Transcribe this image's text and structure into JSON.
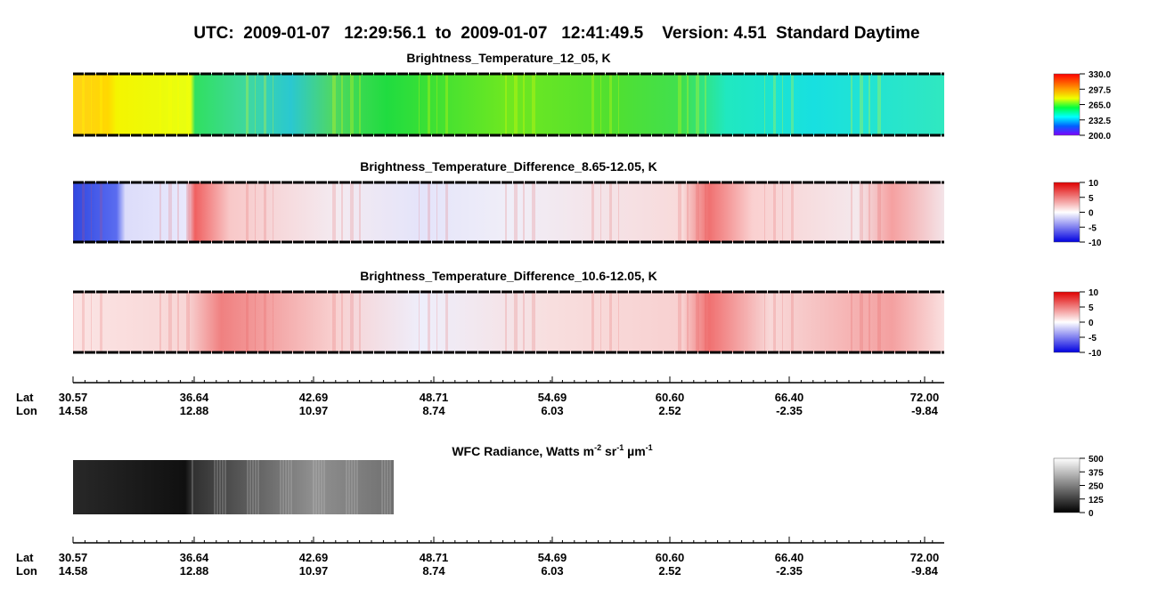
{
  "header": {
    "title": "UTC:  2009-01-07   12:29:56.1  to  2009-01-07   12:41:49.5    Version: 4.51  Standard Daytime"
  },
  "panels": [
    {
      "title": "Brightness_Temperature_12_05, K",
      "colorbar": [
        "330.0",
        "297.5",
        "265.0",
        "232.5",
        "200.0"
      ]
    },
    {
      "title": "Brightness_Temperature_Difference_8.65-12.05, K",
      "colorbar": [
        "10",
        "5",
        "0",
        "-5",
        "-10"
      ]
    },
    {
      "title": "Brightness_Temperature_Difference_10.6-12.05, K",
      "colorbar": [
        "10",
        "5",
        "0",
        "-5",
        "-10"
      ]
    }
  ],
  "wfc": {
    "title": [
      "WFC Radiance, Watts m",
      "-2",
      " sr",
      "-1",
      " µm",
      "-1"
    ],
    "colorbar": [
      "500",
      "375",
      "250",
      "125",
      "0"
    ]
  },
  "axis": {
    "lat_label": "Lat",
    "lon_label": "Lon",
    "lat": [
      "30.57",
      "36.64",
      "42.69",
      "48.71",
      "54.69",
      "60.60",
      "66.40",
      "72.00"
    ],
    "lon": [
      "14.58",
      "12.88",
      "10.97",
      "8.74",
      "6.03",
      "2.52",
      "-2.35",
      "-9.84"
    ]
  }
}
